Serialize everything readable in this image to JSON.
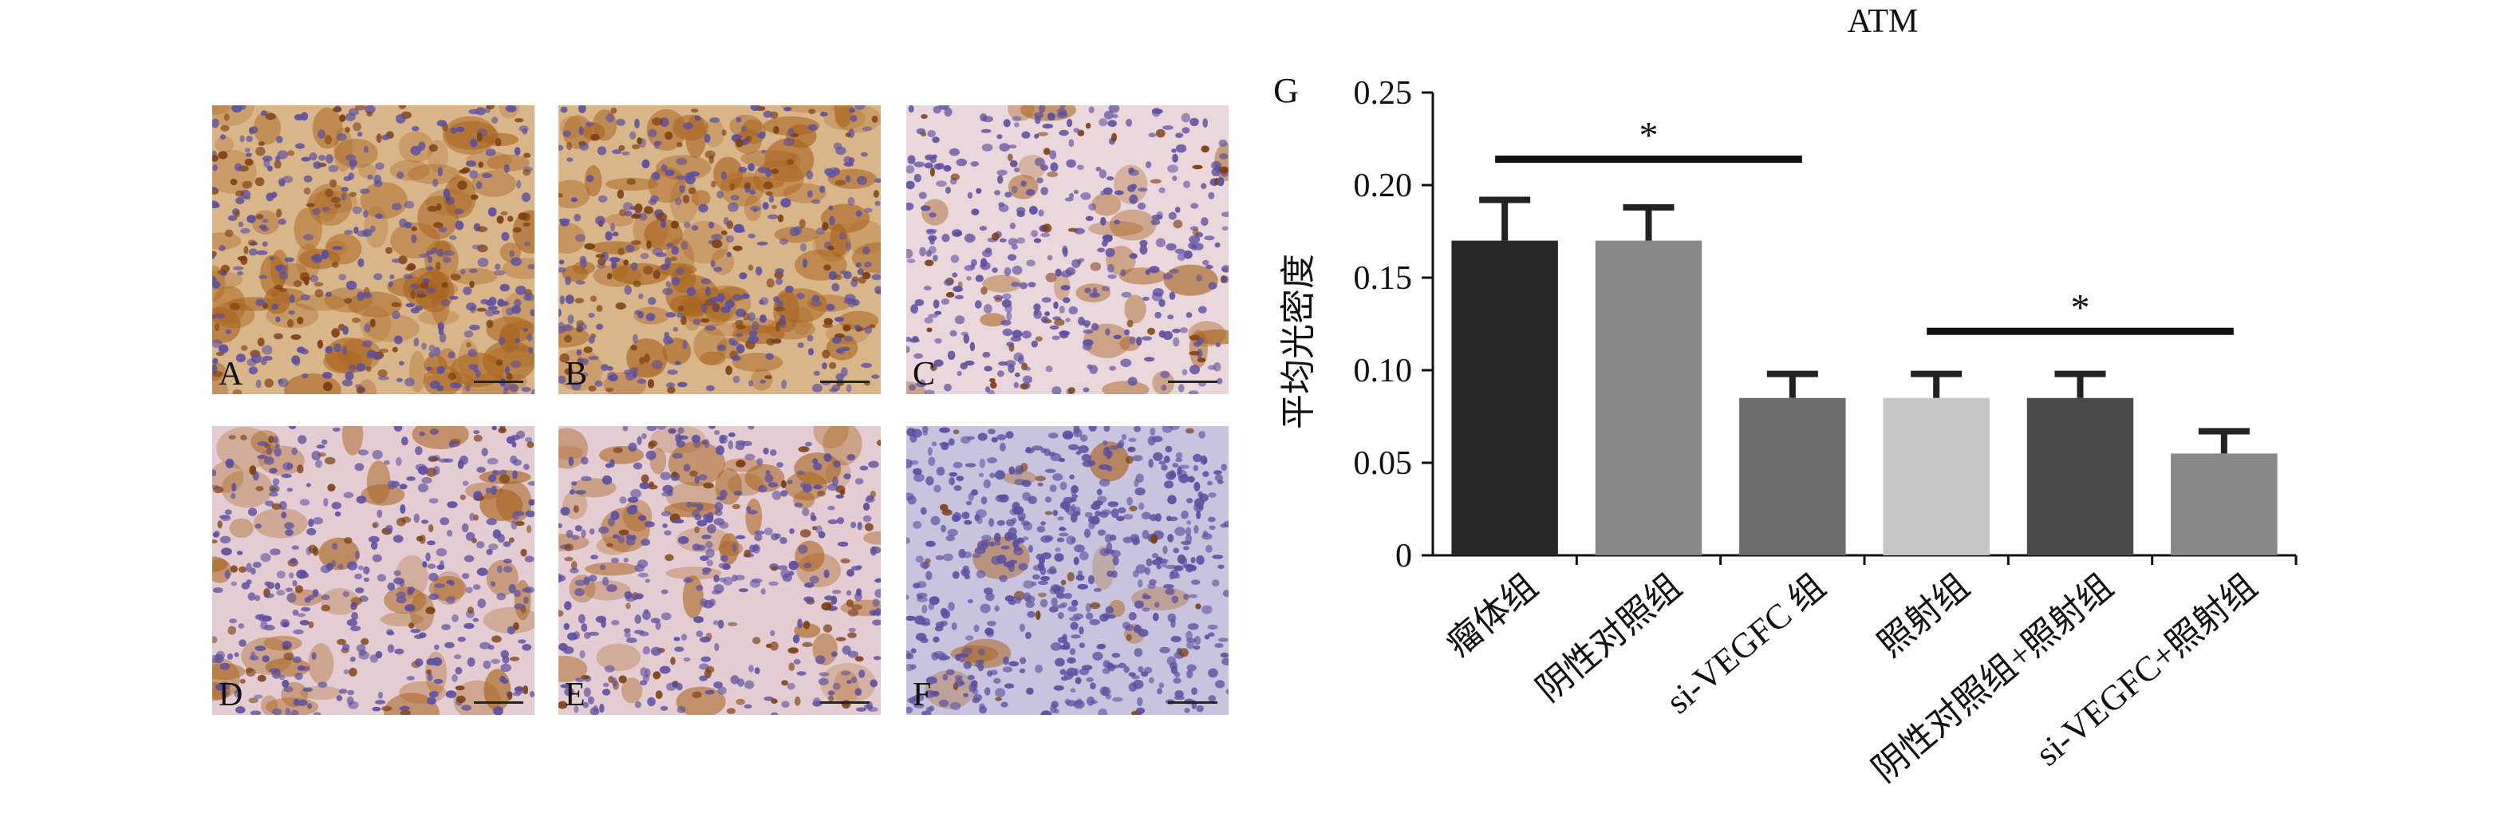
{
  "panels": [
    {
      "letter": "A",
      "stain": "heavy"
    },
    {
      "letter": "B",
      "stain": "heavy"
    },
    {
      "letter": "C",
      "stain": "light"
    },
    {
      "letter": "D",
      "stain": "medium"
    },
    {
      "letter": "E",
      "stain": "medium"
    },
    {
      "letter": "F",
      "stain": "faint"
    }
  ],
  "colors": {
    "hematoxylin": "#5b4fa0",
    "dab_brown": "#a8641e",
    "tissue_pink": "#e7d3da"
  },
  "chart_data": {
    "type": "bar",
    "title": "ATM",
    "panel_label": "G",
    "ylabel": "平均光密度",
    "ylim": [
      0,
      0.25
    ],
    "yticks": [
      "0",
      "0.05",
      "0.10",
      "0.15",
      "0.20",
      "0.25"
    ],
    "yticks_values": [
      0,
      0.05,
      0.1,
      0.15,
      0.2,
      0.25
    ],
    "categories": [
      "瘤体组",
      "阴性对照组",
      "si-VEGFC 组",
      "照射组",
      "阴性对照组+照射组",
      "si-VEGFC+照射组"
    ],
    "values": [
      0.17,
      0.17,
      0.085,
      0.085,
      0.085,
      0.055
    ],
    "errors": [
      0.022,
      0.018,
      0.013,
      0.013,
      0.013,
      0.012
    ],
    "bar_colors": [
      "#282828",
      "#888888",
      "#6d6d6d",
      "#c6c6c6",
      "#4a4a4a",
      "#888888"
    ],
    "significance": [
      {
        "from": 0,
        "to": 2,
        "y": 0.214,
        "label": "*"
      },
      {
        "from": 3,
        "to": 5,
        "y": 0.121,
        "label": "*"
      }
    ]
  }
}
